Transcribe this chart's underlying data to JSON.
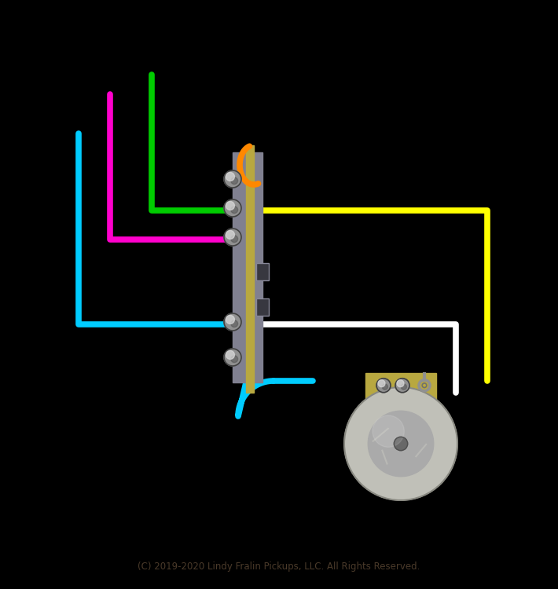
{
  "background_color": "#000000",
  "copyright_text": "(C) 2019-2020 Lindy Fralin Pickups, LLC. All Rights Reserved.",
  "copyright_color": "#4a3a2a",
  "copyright_fontsize": 8.5,
  "switch_board_color": "#b8a840",
  "switch_body_color": "#808090",
  "pot_board_color": "#b8a840",
  "pot_body_color": "#c8c8c0",
  "pot_inner_color": "#a8a8a0",
  "pot_hub_color": "#707070"
}
